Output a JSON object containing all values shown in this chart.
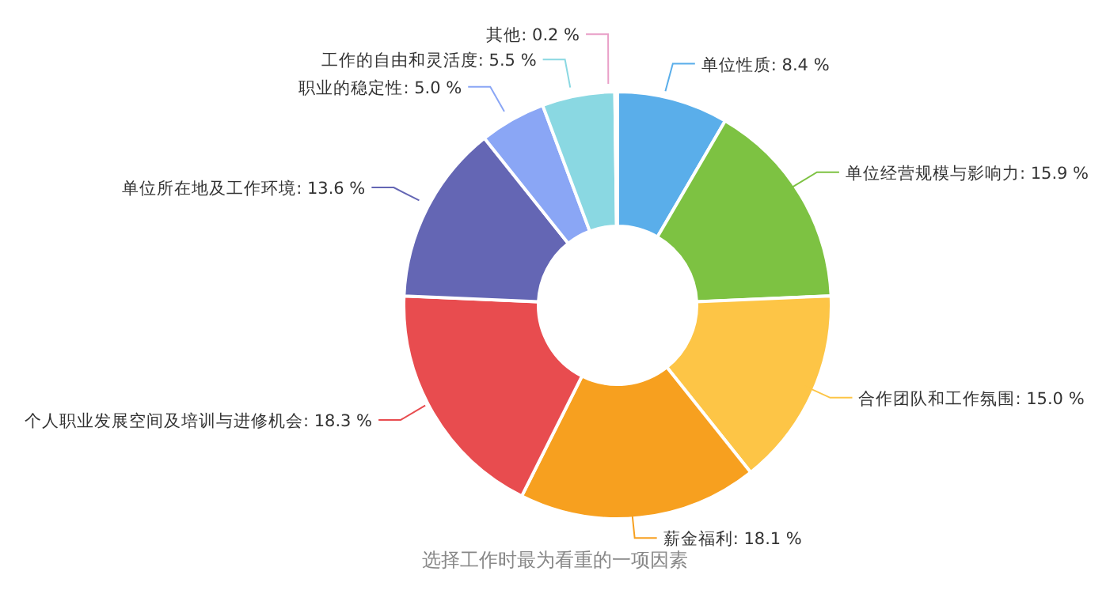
{
  "chart_data": {
    "type": "donut",
    "title": "选择工作时最为看重的一项因素",
    "categories": [
      "单位性质",
      "单位经营规模与影响力",
      "合作团队和工作氛围",
      "薪金福利",
      "个人职业发展空间及培训与进修机会",
      "单位所在地及工作环境",
      "职业的稳定性",
      "工作的自由和灵活度",
      "其他"
    ],
    "values": [
      8.4,
      15.9,
      15.0,
      18.1,
      18.3,
      13.6,
      5.0,
      5.5,
      0.2
    ],
    "value_labels": [
      "8.4 %",
      "15.9 %",
      "15.0 %",
      "18.1 %",
      "18.3 %",
      "13.6 %",
      "5.0 %",
      "5.5 %",
      "0.2 %"
    ],
    "colors": [
      "#5aaeea",
      "#7dc242",
      "#fdc546",
      "#f7a01f",
      "#e84c4f",
      "#6466b4",
      "#8aa6f5",
      "#8ad8e2",
      "#e9a0c8"
    ]
  }
}
